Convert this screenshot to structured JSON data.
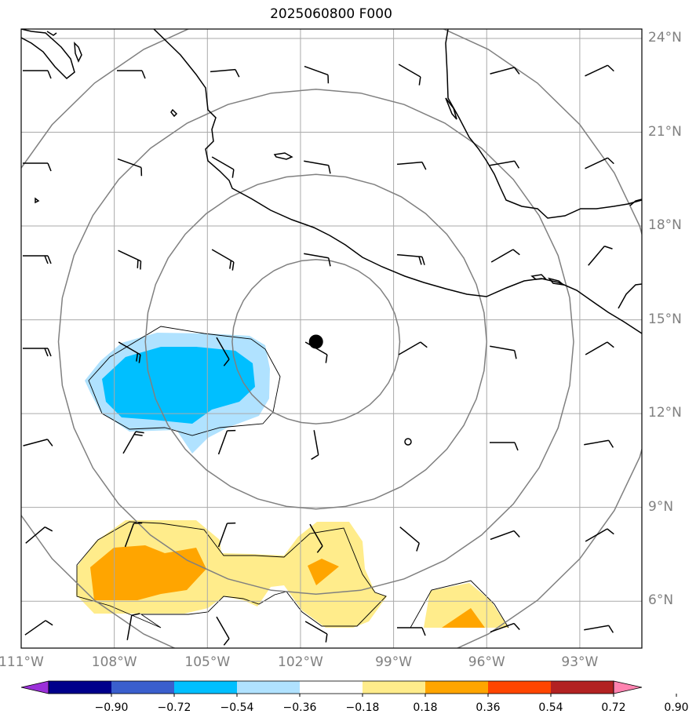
{
  "title": "2025060800 F000",
  "latitudes": [
    {
      "label": "24°N",
      "deg": 24
    },
    {
      "label": "21°N",
      "deg": 21
    },
    {
      "label": "18°N",
      "deg": 18
    },
    {
      "label": "15°N",
      "deg": 15
    },
    {
      "label": "12°N",
      "deg": 12
    },
    {
      "label": "9°N",
      "deg": 9
    },
    {
      "label": "6°N",
      "deg": 6
    }
  ],
  "longitudes": [
    {
      "label": "111°W",
      "deg": -111
    },
    {
      "label": "108°W",
      "deg": -108
    },
    {
      "label": "105°W",
      "deg": -105
    },
    {
      "label": "102°W",
      "deg": -102
    },
    {
      "label": "99°W",
      "deg": -99
    },
    {
      "label": "96°W",
      "deg": -96
    },
    {
      "label": "93°W",
      "deg": -93
    }
  ],
  "map_extent": {
    "lon_min": -111,
    "lon_max": -91,
    "lat_min": 4.5,
    "lat_max": 24.3
  },
  "storm_center": {
    "lon": -101.5,
    "lat": 14.3
  },
  "range_rings_deg": [
    2.7,
    5.5,
    8.3,
    11.1
  ],
  "colorbar": {
    "tick_labels": [
      "−0.90",
      "−0.72",
      "−0.54",
      "−0.36",
      "−0.18",
      "0.18",
      "0.36",
      "0.54",
      "0.72",
      "0.90"
    ],
    "colors": [
      "#9b30d9",
      "#00008b",
      "#3a5fcd",
      "#00bfff",
      "#b0e2ff",
      "#ffffff",
      "#ffec8b",
      "#ffa500",
      "#ff4500",
      "#b22222",
      "#ff83b0"
    ]
  },
  "colors": {
    "light_blue": "#b0e2ff",
    "deep_sky_blue": "#00bfff",
    "light_yellow": "#ffec8b",
    "orange": "#ffa500",
    "grid": "#aaaaaa",
    "rings": "#808080",
    "coast": "#000000"
  },
  "icons": [
    "wind-barb-icon",
    "storm-center-marker-icon",
    "calm-wind-circle-icon"
  ]
}
